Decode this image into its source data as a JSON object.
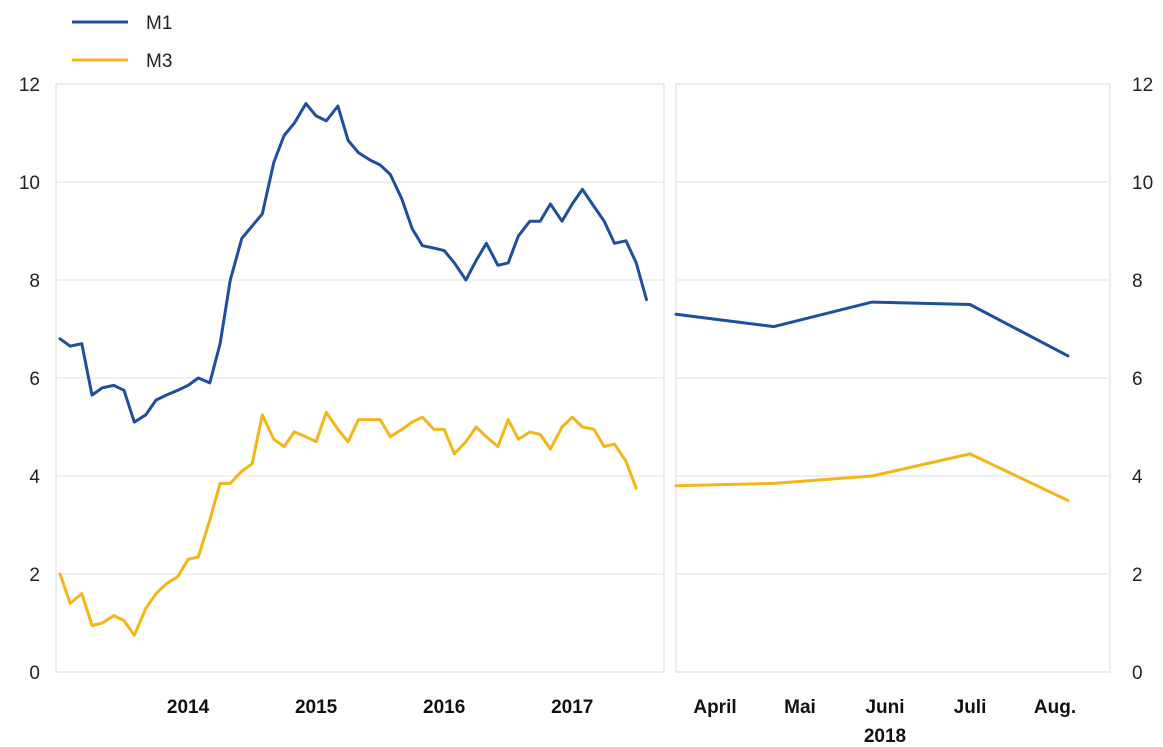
{
  "chart_data": [
    {
      "type": "line",
      "panel": "left",
      "ylim": [
        0,
        12
      ],
      "yticks": [
        "0",
        "2",
        "4",
        "6",
        "8",
        "10",
        "12"
      ],
      "x_tick_labels": [
        "2014",
        "2015",
        "2016",
        "2017"
      ],
      "x_range": [
        2013.5,
        2018.17
      ],
      "legend": {
        "placement": "top-left",
        "entries": [
          "M1",
          "M3"
        ]
      },
      "grid": true,
      "series": [
        {
          "name": "M1",
          "color": "#1F4E9E",
          "points": [
            [
              2013.5,
              6.8
            ],
            [
              2013.58,
              6.65
            ],
            [
              2013.67,
              6.7
            ],
            [
              2013.75,
              5.65
            ],
            [
              2013.83,
              5.8
            ],
            [
              2013.92,
              5.85
            ],
            [
              2014.0,
              5.75
            ],
            [
              2014.08,
              5.1
            ],
            [
              2014.17,
              5.25
            ],
            [
              2014.25,
              5.55
            ],
            [
              2014.33,
              5.65
            ],
            [
              2014.42,
              5.75
            ],
            [
              2014.5,
              5.85
            ],
            [
              2014.58,
              6.0
            ],
            [
              2014.67,
              5.9
            ],
            [
              2014.75,
              6.7
            ],
            [
              2014.83,
              8.0
            ],
            [
              2014.92,
              8.85
            ],
            [
              2015.0,
              9.1
            ],
            [
              2015.08,
              9.35
            ],
            [
              2015.17,
              10.4
            ],
            [
              2015.25,
              10.95
            ],
            [
              2015.33,
              11.2
            ],
            [
              2015.42,
              11.6
            ],
            [
              2015.5,
              11.35
            ],
            [
              2015.58,
              11.25
            ],
            [
              2015.67,
              11.55
            ],
            [
              2015.75,
              10.85
            ],
            [
              2015.83,
              10.6
            ],
            [
              2015.92,
              10.45
            ],
            [
              2016.0,
              10.35
            ],
            [
              2016.08,
              10.15
            ],
            [
              2016.17,
              9.65
            ],
            [
              2016.25,
              9.05
            ],
            [
              2016.33,
              8.7
            ],
            [
              2016.42,
              8.65
            ],
            [
              2016.5,
              8.6
            ],
            [
              2016.58,
              8.35
            ],
            [
              2016.67,
              8.0
            ],
            [
              2016.75,
              8.4
            ],
            [
              2016.83,
              8.75
            ],
            [
              2016.92,
              8.3
            ],
            [
              2017.0,
              8.35
            ],
            [
              2017.08,
              8.9
            ],
            [
              2017.17,
              9.2
            ],
            [
              2017.25,
              9.2
            ],
            [
              2017.33,
              9.55
            ],
            [
              2017.42,
              9.2
            ],
            [
              2017.5,
              9.55
            ],
            [
              2017.58,
              9.85
            ],
            [
              2017.67,
              9.5
            ],
            [
              2017.75,
              9.2
            ],
            [
              2017.83,
              8.75
            ],
            [
              2017.92,
              8.8
            ],
            [
              2018.0,
              8.35
            ],
            [
              2018.08,
              7.6
            ]
          ]
        },
        {
          "name": "M3",
          "color": "#F2B619",
          "points": [
            [
              2013.5,
              2.0
            ],
            [
              2013.58,
              1.4
            ],
            [
              2013.67,
              1.6
            ],
            [
              2013.75,
              0.95
            ],
            [
              2013.83,
              1.0
            ],
            [
              2013.92,
              1.15
            ],
            [
              2014.0,
              1.05
            ],
            [
              2014.08,
              0.75
            ],
            [
              2014.17,
              1.3
            ],
            [
              2014.25,
              1.6
            ],
            [
              2014.33,
              1.8
            ],
            [
              2014.42,
              1.95
            ],
            [
              2014.5,
              2.3
            ],
            [
              2014.58,
              2.35
            ],
            [
              2014.67,
              3.1
            ],
            [
              2014.75,
              3.85
            ],
            [
              2014.83,
              3.85
            ],
            [
              2014.92,
              4.1
            ],
            [
              2015.0,
              4.25
            ],
            [
              2015.08,
              5.25
            ],
            [
              2015.17,
              4.75
            ],
            [
              2015.25,
              4.6
            ],
            [
              2015.33,
              4.9
            ],
            [
              2015.42,
              4.8
            ],
            [
              2015.5,
              4.7
            ],
            [
              2015.58,
              5.3
            ],
            [
              2015.67,
              4.95
            ],
            [
              2015.75,
              4.7
            ],
            [
              2015.83,
              5.15
            ],
            [
              2015.92,
              5.15
            ],
            [
              2016.0,
              5.15
            ],
            [
              2016.08,
              4.8
            ],
            [
              2016.17,
              4.95
            ],
            [
              2016.25,
              5.1
            ],
            [
              2016.33,
              5.2
            ],
            [
              2016.42,
              4.95
            ],
            [
              2016.5,
              4.95
            ],
            [
              2016.58,
              4.45
            ],
            [
              2016.67,
              4.7
            ],
            [
              2016.75,
              5.0
            ],
            [
              2016.83,
              4.8
            ],
            [
              2016.92,
              4.6
            ],
            [
              2017.0,
              5.15
            ],
            [
              2017.08,
              4.75
            ],
            [
              2017.17,
              4.9
            ],
            [
              2017.25,
              4.85
            ],
            [
              2017.33,
              4.55
            ],
            [
              2017.42,
              5.0
            ],
            [
              2017.5,
              5.2
            ],
            [
              2017.58,
              5.0
            ],
            [
              2017.67,
              4.95
            ],
            [
              2017.75,
              4.6
            ],
            [
              2017.83,
              4.65
            ],
            [
              2017.92,
              4.3
            ],
            [
              2018.0,
              3.75
            ]
          ]
        }
      ]
    },
    {
      "type": "line",
      "panel": "right",
      "ylim": [
        0,
        12
      ],
      "yticks": [
        "0",
        "2",
        "4",
        "6",
        "8",
        "10",
        "12"
      ],
      "categories": [
        "April",
        "Mai",
        "Juni",
        "Juli",
        "Aug."
      ],
      "year_label": "2018",
      "grid": true,
      "series": [
        {
          "name": "M1",
          "color": "#1F4E9E",
          "values": [
            7.3,
            7.05,
            7.55,
            7.5,
            6.45
          ]
        },
        {
          "name": "M3",
          "color": "#F2B619",
          "values": [
            3.8,
            3.85,
            4.0,
            4.45,
            3.5
          ]
        }
      ]
    }
  ]
}
